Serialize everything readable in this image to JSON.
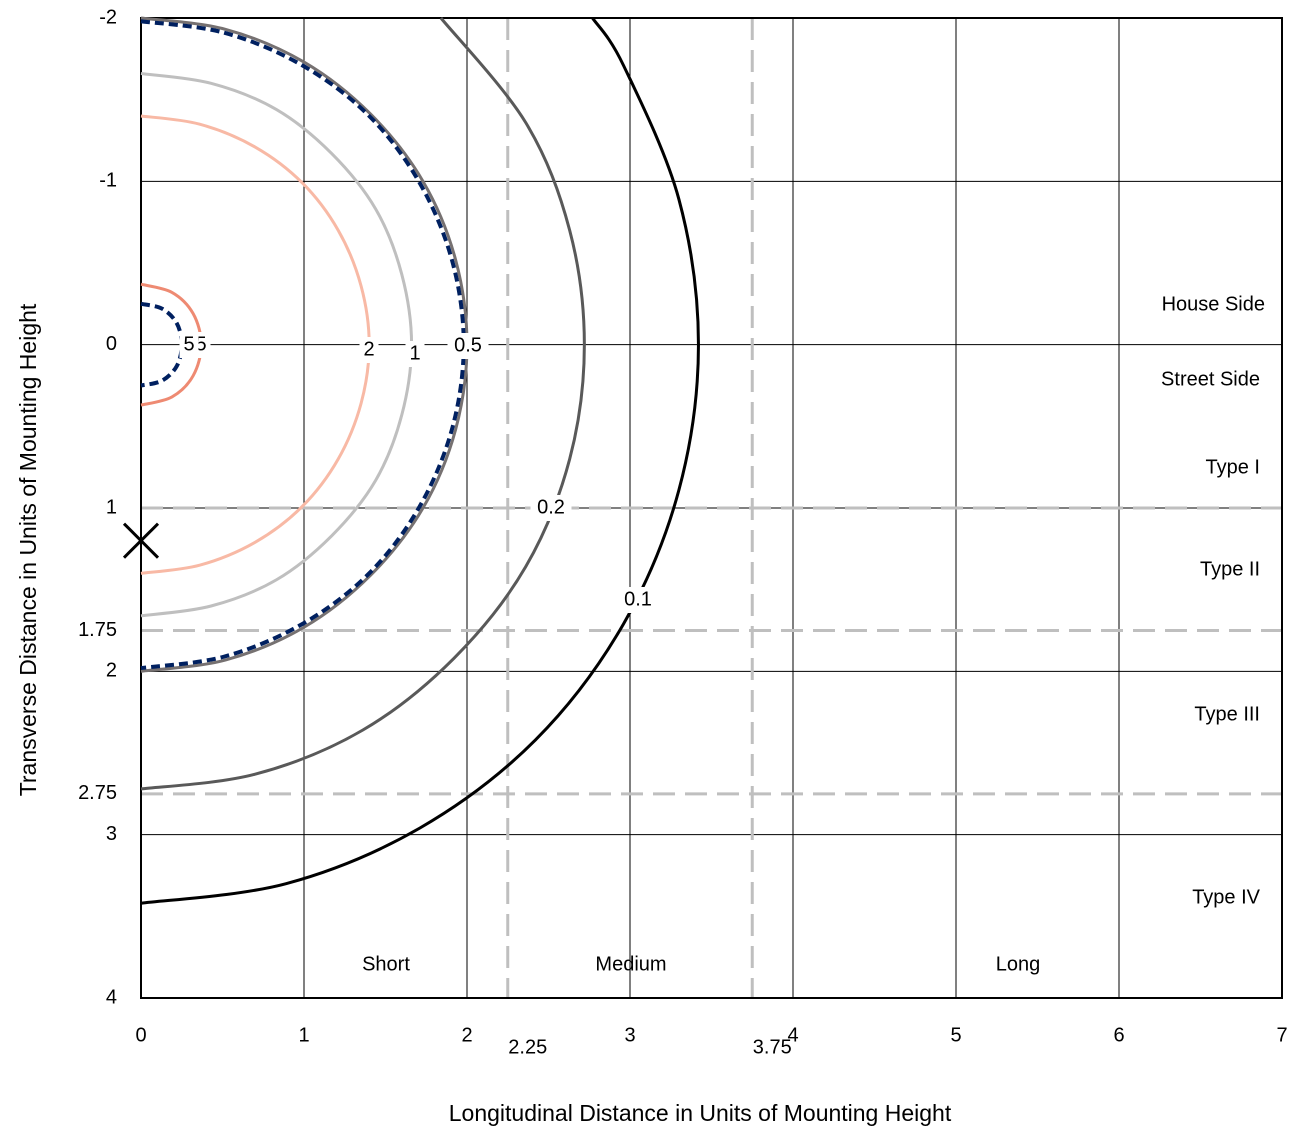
{
  "chart_data": {
    "type": "contour",
    "x_label": "Longitudinal Distance in Units of Mounting Height",
    "y_label": "Transverse Distance in Units of Mounting Height",
    "xlim": [
      0,
      7
    ],
    "ylim": [
      -2,
      4
    ],
    "xticks": [
      0,
      1,
      2,
      3,
      4,
      5,
      6,
      7
    ],
    "yticks": [
      -2,
      -1,
      0,
      1,
      2,
      3,
      4
    ],
    "x_dividers": [
      2.25,
      3.75
    ],
    "y_dividers": [
      1,
      1.75,
      2.75
    ],
    "grid": true,
    "transverse_regions": [
      "House Side",
      "Street Side",
      "Type I",
      "Type II",
      "Type III",
      "Type IV"
    ],
    "longitudinal_regions": [
      "Short",
      "Medium",
      "Long"
    ],
    "marker": {
      "x": 0,
      "y": 1.2
    },
    "series": [
      {
        "label": "0.1",
        "color": "#000000",
        "x": [
          2.77,
          2.96,
          3.3,
          3.42,
          3.3,
          2.96,
          2.42,
          1.71,
          0.89,
          0
        ],
        "y": [
          -2,
          -1.71,
          -0.89,
          0,
          0.89,
          1.71,
          2.42,
          2.96,
          3.3,
          3.42
        ]
      },
      {
        "label": "0.2",
        "color": "#595959",
        "x": [
          1.84,
          2.36,
          2.63,
          2.72,
          2.63,
          2.36,
          1.92,
          1.36,
          0.7,
          0
        ],
        "y": [
          -2,
          -1.36,
          -0.7,
          0,
          0.7,
          1.36,
          1.92,
          2.36,
          2.63,
          2.72
        ]
      },
      {
        "label": "0.5",
        "color": "#767171",
        "x": [
          0,
          0.52,
          1,
          1.41,
          1.73,
          1.93,
          2,
          1.93,
          1.73,
          1.41,
          1,
          0.52,
          0
        ],
        "y": [
          -2,
          -1.93,
          -1.73,
          -1.41,
          -1,
          -0.52,
          0,
          0.52,
          1,
          1.41,
          1.73,
          1.93,
          2
        ]
      },
      {
        "color": "#002060",
        "dash": true,
        "x": [
          0,
          0.51,
          0.99,
          1.4,
          1.71,
          1.91,
          1.98,
          1.91,
          1.71,
          1.4,
          0.99,
          0.51,
          0
        ],
        "y": [
          -1.98,
          -1.91,
          -1.71,
          -1.4,
          -0.99,
          -0.51,
          0,
          0.51,
          0.99,
          1.4,
          1.71,
          1.91,
          1.98
        ]
      },
      {
        "label": "1",
        "color": "#bfbfbf",
        "x": [
          0,
          0.43,
          0.83,
          1.17,
          1.44,
          1.6,
          1.66,
          1.6,
          1.44,
          1.17,
          0.83,
          0.43,
          0
        ],
        "y": [
          -1.66,
          -1.6,
          -1.44,
          -1.17,
          -0.83,
          -0.43,
          0,
          0.43,
          0.83,
          1.17,
          1.44,
          1.6,
          1.66
        ]
      },
      {
        "label": "2",
        "color": "#f8b9a5",
        "x": [
          0,
          0.36,
          0.7,
          0.99,
          1.21,
          1.35,
          1.4,
          1.35,
          1.21,
          0.99,
          0.7,
          0.36,
          0
        ],
        "y": [
          -1.4,
          -1.35,
          -1.21,
          -0.99,
          -0.7,
          -0.36,
          0,
          0.36,
          0.7,
          0.99,
          1.21,
          1.35,
          1.4
        ]
      },
      {
        "label": "5",
        "color": "#ee8a72",
        "x": [
          0,
          0.19,
          0.32,
          0.37,
          0.32,
          0.19,
          0
        ],
        "y": [
          -0.37,
          -0.32,
          -0.19,
          0,
          0.19,
          0.32,
          0.37
        ]
      },
      {
        "label": "5",
        "color": "#002060",
        "dash": true,
        "x": [
          0,
          0.13,
          0.22,
          0.25,
          0.22,
          0.13,
          0
        ],
        "y": [
          -0.25,
          -0.22,
          -0.13,
          0,
          0.13,
          0.22,
          0.25
        ]
      }
    ]
  }
}
